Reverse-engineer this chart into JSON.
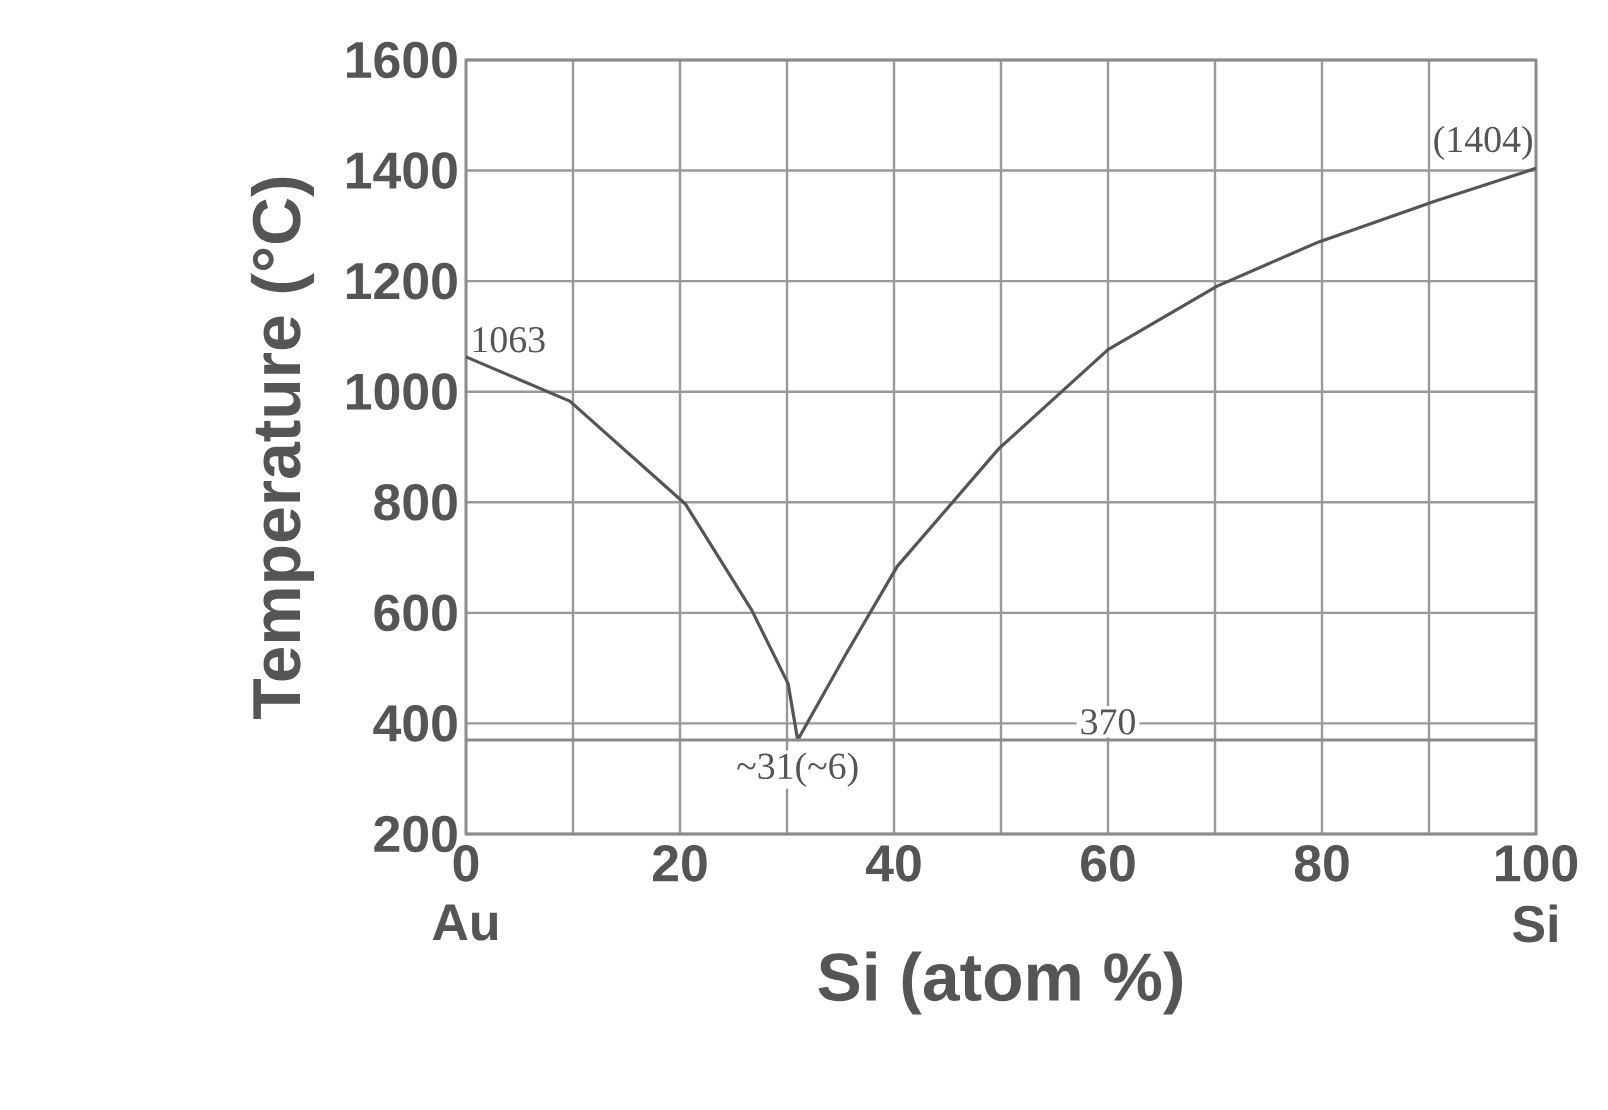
{
  "chart_data": {
    "type": "line",
    "xlabel": "Si (atom %)",
    "ylabel": "Temperature (°C)",
    "xlim": [
      0,
      100
    ],
    "ylim": [
      200,
      1600
    ],
    "xticks": [
      0,
      {
        "value": 10,
        "label": null
      },
      20,
      {
        "value": 30,
        "label": null
      },
      40,
      {
        "value": 50,
        "label": null
      },
      60,
      {
        "value": 70,
        "label": null
      },
      80,
      {
        "value": 90,
        "label": null
      },
      100
    ],
    "yticks": [
      200,
      400,
      600,
      800,
      1000,
      1200,
      1400,
      1600
    ],
    "grid": true,
    "marker": "none",
    "line_style": "solid",
    "series": [
      {
        "color": "#555555",
        "x": [
          0,
          9.7,
          20.5,
          26.7,
          30.1,
          31,
          35.5,
          40.3,
          49.8,
          60,
          70.2,
          79.7,
          90.6,
          100
        ],
        "values": [
          1063,
          983,
          797,
          605,
          472,
          370,
          525,
          684,
          897,
          1076,
          1191,
          1271,
          1345,
          1404
        ]
      }
    ],
    "ref_lines": [
      {
        "axis": "y",
        "value": 370,
        "label": "370"
      }
    ],
    "annotations": [
      {
        "text": "1063",
        "x": 0,
        "y": 1063
      },
      {
        "text": "(1404)",
        "x": 100,
        "y": 1404
      },
      {
        "text": "~31(~6)",
        "x": 31,
        "y": 370
      },
      "Au",
      "Si"
    ]
  }
}
